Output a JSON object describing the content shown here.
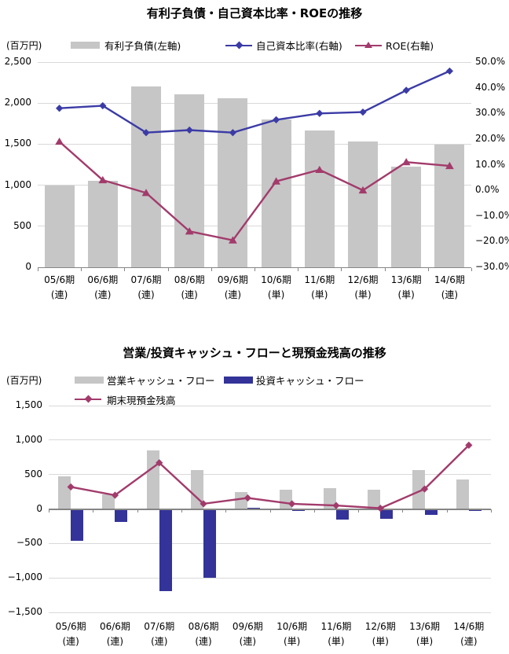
{
  "page": {
    "background": "#ffffff"
  },
  "chart_data": [
    {
      "type": "bar",
      "title": "有利子負債・自己資本比率・ROEの推移",
      "unit_label": "(百万円)",
      "categories": [
        "05/6期",
        "06/6期",
        "07/6期",
        "08/6期",
        "09/6期",
        "10/6期",
        "11/6期",
        "12/6期",
        "13/6期",
        "14/6期"
      ],
      "category_sub": [
        "(連)",
        "(連)",
        "(連)",
        "(連)",
        "(連)",
        "(単)",
        "(単)",
        "(単)",
        "(単)",
        "(連)"
      ],
      "left_axis": {
        "min": 0,
        "max": 2500,
        "tick_values": [
          2500,
          2000,
          1500,
          1000,
          500,
          0
        ],
        "tick_labels": [
          "2,500",
          "2,000",
          "1,500",
          "1,000",
          "500",
          "0"
        ]
      },
      "right_axis": {
        "min": -30,
        "max": 50,
        "tick_values": [
          50,
          40,
          30,
          20,
          10,
          0,
          -10,
          -20,
          -30
        ],
        "tick_labels": [
          "50.0%",
          "40.0%",
          "30.0%",
          "20.0%",
          "10.0%",
          "0.0%",
          "−10.0%",
          "−20.0%",
          "−30.0%"
        ]
      },
      "gridline_values": [
        2500,
        2000,
        1500,
        1000,
        500
      ],
      "grid": true,
      "legend_position": "top",
      "series": [
        {
          "name": "有利子負債(左軸)",
          "kind": "bar",
          "axis": "left",
          "color": "#c6c6c6",
          "values": [
            1000,
            1050,
            2200,
            2110,
            2060,
            1800,
            1670,
            1530,
            1230,
            1490
          ]
        },
        {
          "name": "自己資本比率(右軸)",
          "kind": "line",
          "marker": "diamond",
          "axis": "right",
          "color": "#3b3ba6",
          "values": [
            32,
            33,
            22.5,
            23.5,
            22.5,
            27.5,
            30,
            30.5,
            39,
            46.5
          ]
        },
        {
          "name": "ROE(右軸)",
          "kind": "line",
          "marker": "triangle",
          "axis": "right",
          "color": "#a23b6b",
          "values": [
            19,
            4,
            -1,
            -16,
            -19.5,
            3.5,
            8,
            0,
            11,
            9.5
          ]
        }
      ]
    },
    {
      "type": "bar",
      "title": "営業/投資キャッシュ・フローと現預金残高の推移",
      "unit_label": "(百万円)",
      "categories": [
        "05/6期",
        "06/6期",
        "07/6期",
        "08/6期",
        "09/6期",
        "10/6期",
        "11/6期",
        "12/6期",
        "13/6期",
        "14/6期"
      ],
      "category_sub": [
        "(連)",
        "(連)",
        "(連)",
        "(連)",
        "(連)",
        "(単)",
        "(単)",
        "(単)",
        "(単)",
        "(連)"
      ],
      "left_axis": {
        "min": -1500,
        "max": 1500,
        "tick_values": [
          1500,
          1000,
          500,
          0,
          -500,
          -1000,
          -1500
        ],
        "tick_labels": [
          "1,500",
          "1,000",
          "500",
          "0",
          "−500",
          "−1,000",
          "−1,500"
        ]
      },
      "gridline_values": [
        1500,
        1000,
        500,
        -500,
        -1000,
        -1500
      ],
      "grid": true,
      "legend_position": "top",
      "series": [
        {
          "name": "営業キャッシュ・フロー",
          "kind": "bar",
          "axis": "left",
          "color": "#c6c6c6",
          "values": [
            470,
            210,
            850,
            570,
            250,
            280,
            300,
            280,
            570,
            430
          ]
        },
        {
          "name": "投資キャッシュ・フロー",
          "kind": "bar",
          "axis": "left",
          "color": "#333399",
          "values": [
            -460,
            -190,
            -1190,
            -1000,
            20,
            -30,
            -150,
            -140,
            -90,
            -30
          ]
        },
        {
          "name": "期末現預金残高",
          "kind": "line",
          "marker": "diamond",
          "axis": "left",
          "color": "#a23b6b",
          "values": [
            320,
            200,
            670,
            75,
            160,
            75,
            50,
            10,
            290,
            925
          ]
        }
      ]
    }
  ]
}
